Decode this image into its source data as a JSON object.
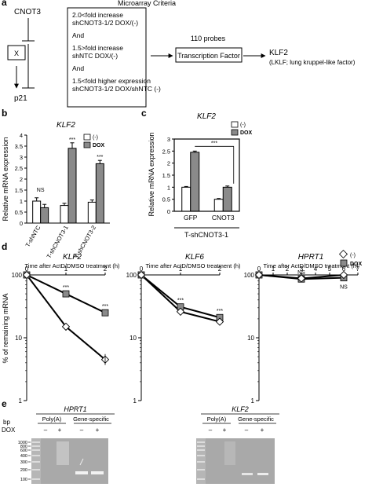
{
  "panel_a": {
    "letter": "a",
    "cnot3": "CNOT3",
    "x": "X",
    "p21": "p21",
    "criteria_title": "Microarray Criteria",
    "criteria": [
      "2.0<fold increase",
      "shCNOT3-1/2 DOX/(-)",
      "And",
      "1.5>fold increase",
      "shNTC DOX/(-)",
      "And",
      "1.5<fold higher expression",
      "shCNOT3-1/2 DOX/shNTC (-)"
    ],
    "probes": "110 probes",
    "tf": "Transcription Factor",
    "klf2": "KLF2",
    "klf2_desc": "(LKLF; lung kruppel-like factor)"
  },
  "panel_b": {
    "letter": "b",
    "title": "KLF2",
    "ylabel": "Relative mRNA expression",
    "legend": [
      "(-)",
      "DOX"
    ],
    "stars": [
      "NS",
      "***",
      "***"
    ]
  },
  "panel_c": {
    "letter": "c",
    "title": "KLF2",
    "ylabel": "Relative mRNA expression",
    "legend": [
      "(-)",
      "DOX"
    ],
    "stars": "***",
    "group_label": "T-shCNOT3-1"
  },
  "panel_d": {
    "letter": "d",
    "ylabel": "% of remaining mRNA",
    "legend": [
      "(-)",
      "DOX"
    ],
    "xtitle": "Time after ActD/DMSO treatment (h)",
    "titles": [
      "KLF2",
      "KLF6",
      "HPRT1"
    ],
    "stars_klf2": [
      "***",
      "***"
    ],
    "stars_klf6": [
      "***",
      "***"
    ],
    "stars_hprt1": [
      "NS",
      "NS"
    ]
  },
  "panel_e": {
    "letter": "e",
    "bp": "bp",
    "dox": "DOX",
    "gels": [
      {
        "title": "HPRT1",
        "groups": [
          "Poly(A)",
          "Gene-specific"
        ]
      },
      {
        "title": "KLF2",
        "groups": [
          "Poly(A)",
          "Gene-specific"
        ]
      }
    ],
    "signs": [
      "–",
      "+",
      "–",
      "+"
    ],
    "ladder": [
      "1000",
      "800",
      "600",
      "400",
      "300",
      "200",
      "100"
    ]
  },
  "chart_data": [
    {
      "type": "bar",
      "panel": "b",
      "title": "KLF2",
      "ylabel": "Relative mRNA expression",
      "categories": [
        "T-shNTC",
        "T-shCNOT3-1",
        "T-shCNOT3-2"
      ],
      "series": [
        {
          "name": "(-)",
          "values": [
            1.0,
            0.8,
            0.95
          ],
          "errors": [
            0.15,
            0.1,
            0.1
          ]
        },
        {
          "name": "DOX",
          "values": [
            0.7,
            3.4,
            2.7
          ],
          "errors": [
            0.15,
            0.25,
            0.15
          ]
        }
      ],
      "ylim": [
        0,
        4
      ],
      "yticks": [
        0,
        0.5,
        1,
        1.5,
        2,
        2.5,
        3,
        3.5,
        4
      ]
    },
    {
      "type": "bar",
      "panel": "c",
      "title": "KLF2",
      "ylabel": "Relative mRNA expression",
      "categories": [
        "GFP",
        "CNOT3"
      ],
      "series": [
        {
          "name": "(-)",
          "values": [
            1.0,
            0.5
          ],
          "errors": [
            0.03,
            0.03
          ]
        },
        {
          "name": "DOX",
          "values": [
            2.45,
            1.0
          ],
          "errors": [
            0.05,
            0.05
          ]
        }
      ],
      "ylim": [
        0,
        3
      ],
      "yticks": [
        0,
        0.5,
        1,
        1.5,
        2,
        2.5,
        3
      ]
    },
    {
      "type": "line",
      "panel": "d",
      "title": "KLF2",
      "x": [
        0,
        1,
        2
      ],
      "xticks": [
        0,
        1,
        2
      ],
      "series": [
        {
          "name": "(-)",
          "values": [
            100,
            15,
            4.5
          ]
        },
        {
          "name": "DOX",
          "values": [
            100,
            50,
            25
          ]
        }
      ],
      "ylim": [
        1,
        100
      ],
      "yscale": "log"
    },
    {
      "type": "line",
      "panel": "d",
      "title": "KLF6",
      "x": [
        0,
        1,
        2
      ],
      "xticks": [
        0,
        1,
        2
      ],
      "series": [
        {
          "name": "(-)",
          "values": [
            100,
            26,
            18
          ]
        },
        {
          "name": "DOX",
          "values": [
            100,
            31,
            21
          ]
        }
      ],
      "ylim": [
        1,
        100
      ],
      "yscale": "log"
    },
    {
      "type": "line",
      "panel": "d",
      "title": "HPRT1",
      "x": [
        0,
        3,
        6
      ],
      "xticks": [
        0,
        1,
        2,
        3,
        4,
        5,
        6,
        7
      ],
      "series": [
        {
          "name": "(-)",
          "values": [
            100,
            88,
            100
          ]
        },
        {
          "name": "DOX",
          "values": [
            100,
            86,
            90
          ]
        }
      ],
      "ylim": [
        1,
        100
      ],
      "yscale": "log"
    }
  ]
}
